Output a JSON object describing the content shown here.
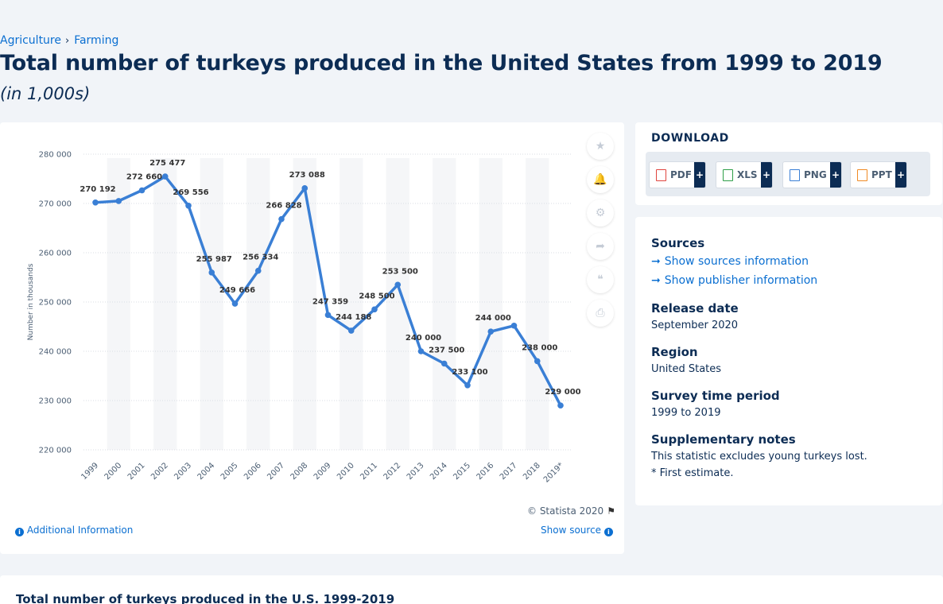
{
  "breadcrumb": {
    "items": [
      "Agriculture",
      "Farming"
    ],
    "separator": "›"
  },
  "title": "Total number of turkeys produced in the United States from 1999 to 2019",
  "subtitle": "(in 1,000s)",
  "chart_data": {
    "type": "line",
    "categories": [
      "1999",
      "2000",
      "2001",
      "2002",
      "2003",
      "2004",
      "2005",
      "2006",
      "2007",
      "2008",
      "2009",
      "2010",
      "2011",
      "2012",
      "2013",
      "2014",
      "2015",
      "2016",
      "2017",
      "2018",
      "2019*"
    ],
    "series": [
      {
        "values": [
          270192,
          270500,
          272660,
          275477,
          269556,
          255987,
          249666,
          256334,
          266828,
          273088,
          247359,
          244188,
          248500,
          253500,
          240000,
          237500,
          233100,
          244000,
          245200,
          238000,
          229000
        ]
      }
    ],
    "data_labels": [
      "270 192",
      "",
      "272 660",
      "275 477",
      "269 556",
      "255 987",
      "249 666",
      "256 334",
      "266 828",
      "273 088",
      "247 359",
      "244 188",
      "248 500",
      "253 500",
      "240 000",
      "237 500",
      "233 100",
      "244 000",
      "",
      "238 000",
      "229 000"
    ],
    "yticks": [
      220000,
      230000,
      240000,
      250000,
      260000,
      270000,
      280000
    ],
    "ytick_labels": [
      "220 000",
      "230 000",
      "240 000",
      "250 000",
      "260 000",
      "270 000",
      "280 000"
    ],
    "ylim": [
      220000,
      280000
    ],
    "ylabel": "Number in thousands",
    "xlabel": "",
    "grid": true,
    "line_color": "#3a7fd5",
    "stripe_color": "#f5f6f8"
  },
  "tools": [
    {
      "name": "favorite-star-icon",
      "glyph": "★"
    },
    {
      "name": "notification-bell-icon",
      "glyph": "🔔"
    },
    {
      "name": "settings-gear-icon",
      "glyph": "⚙"
    },
    {
      "name": "share-icon",
      "glyph": "➦"
    },
    {
      "name": "cite-quote-icon",
      "glyph": "❝"
    },
    {
      "name": "print-icon",
      "glyph": "⎙"
    }
  ],
  "copyright": "© Statista 2020",
  "additional_info": "Additional Information",
  "show_source": "Show source",
  "download": {
    "title": "DOWNLOAD",
    "buttons": [
      {
        "label": "PDF",
        "color": "#e0443e"
      },
      {
        "label": "XLS",
        "color": "#2e9e48"
      },
      {
        "label": "PNG",
        "color": "#3a7fd5"
      },
      {
        "label": "PPT",
        "color": "#f08a24"
      }
    ],
    "plus": "+"
  },
  "meta": {
    "sources_heading": "Sources",
    "show_sources": "Show sources information",
    "show_publisher": "Show publisher information",
    "release_heading": "Release date",
    "release_value": "September 2020",
    "region_heading": "Region",
    "region_value": "United States",
    "period_heading": "Survey time period",
    "period_value": "1999 to 2019",
    "notes_heading": "Supplementary notes",
    "notes_line1": "This statistic excludes young turkeys lost.",
    "notes_line2": "* First estimate."
  },
  "bottom_title": "Total number of turkeys produced in the U.S. 1999-2019"
}
